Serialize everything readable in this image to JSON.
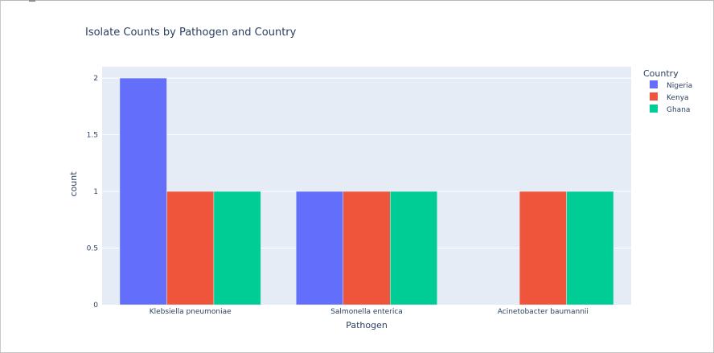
{
  "chart_data": {
    "type": "bar",
    "title": "Isolate Counts by Pathogen and Country",
    "xlabel": "Pathogen",
    "ylabel": "count",
    "categories": [
      "Klebsiella pneumoniae",
      "Salmonella enterica",
      "Acinetobacter baumannii"
    ],
    "series": [
      {
        "name": "Nigeria",
        "values": [
          2,
          1,
          0
        ],
        "color": "#636efa"
      },
      {
        "name": "Kenya",
        "values": [
          1,
          1,
          1
        ],
        "color": "#ef553b"
      },
      {
        "name": "Ghana",
        "values": [
          1,
          1,
          1
        ],
        "color": "#00cc96"
      }
    ],
    "yticks": [
      0,
      0.5,
      1,
      1.5,
      2
    ],
    "ytick_labels": [
      "0",
      "0.5",
      "1",
      "1.5",
      "2"
    ],
    "ylim": [
      0,
      2.1
    ],
    "grid": true,
    "legend": {
      "title": "Country",
      "placement": "right"
    },
    "plot_bgcolor": "#e5ecf6"
  }
}
